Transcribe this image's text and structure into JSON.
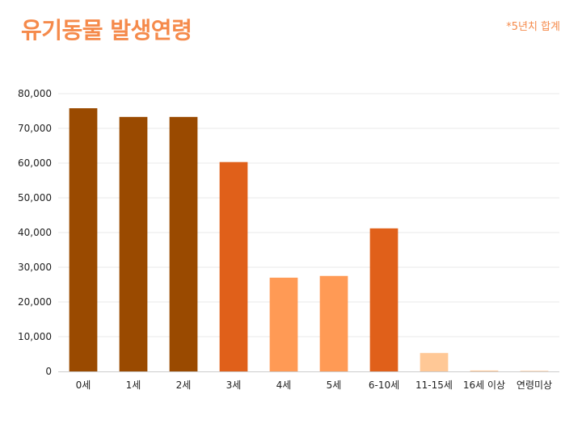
{
  "header": {
    "title": "유기동물 발생연령",
    "note": "*5년치 합계"
  },
  "colors": {
    "title": "#f58a4b",
    "dark_brown": "#9a4a00",
    "dark_orange": "#e0601a",
    "orange": "#ff9a55",
    "light_peach": "#ffc896",
    "gridline": "#e8e8e8",
    "axis": "#cccccc"
  },
  "chart_data": {
    "type": "bar",
    "title": "유기동물 발생연령",
    "note": "*5년치 합계",
    "categories": [
      "0세",
      "1세",
      "2세",
      "3세",
      "4세",
      "5세",
      "6-10세",
      "11-15세",
      "16세 이상",
      "연령미상"
    ],
    "values": [
      75800,
      73300,
      73300,
      60300,
      27000,
      27500,
      41200,
      5300,
      250,
      150
    ],
    "bar_colors": [
      "#9a4a00",
      "#9a4a00",
      "#9a4a00",
      "#e0601a",
      "#ff9a55",
      "#ff9a55",
      "#e0601a",
      "#ffc896",
      "#ffc896",
      "#ffc896"
    ],
    "ylim": [
      0,
      80000
    ],
    "y_ticks": [
      0,
      10000,
      20000,
      30000,
      40000,
      50000,
      60000,
      70000,
      80000
    ],
    "y_tick_labels": [
      "0",
      "10,000",
      "20,000",
      "30,000",
      "40,000",
      "50,000",
      "60,000",
      "70,000",
      "80,000"
    ],
    "grid": true,
    "legend": "none"
  }
}
